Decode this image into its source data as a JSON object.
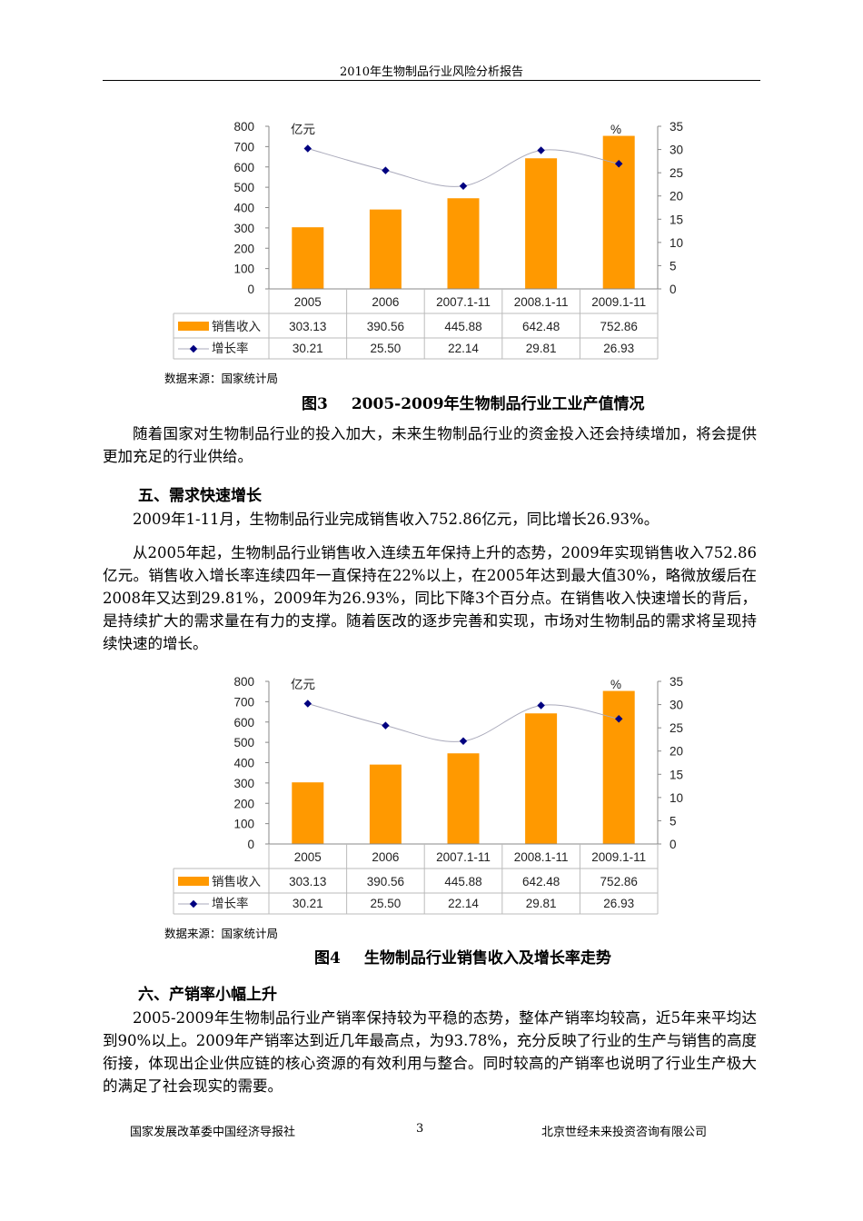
{
  "header": {
    "title": "2010年生物制品行业风险分析报告"
  },
  "body": {
    "p1": "随着国家对生物制品行业的投入加大，未来生物制品行业的资金投入还会持续增加，将会提供更加充足的行业供给。",
    "h5": "五、需求快速增长",
    "p2": "2009年1-11月，生物制品行业完成销售收入752.86亿元，同比增长26.93%。",
    "p3": "从2005年起，生物制品行业销售收入连续五年保持上升的态势，2009年实现销售收入752.86亿元。销售收入增长率连续四年一直保持在22%以上，在2005年达到最大值30%，略微放缓后在2008年又达到29.81%，2009年为26.93%，同比下降3个百分点。在销售收入快速增长的背后，是持续扩大的需求量在有力的支撑。随着医改的逐步完善和实现，市场对生物制品的需求将呈现持续快速的增长。",
    "h6": "六、产销率小幅上升",
    "p4": "2005-2009年生物制品行业产销率保持较为平稳的态势，整体产销率均较高，近5年来平均达到90%以上。2009年产销率达到近几年最高点，为93.78%，充分反映了行业的生产与销售的高度衔接，体现出企业供应链的核心资源的有效利用与整合。同时较高的产销率也说明了行业生产极大的满足了社会现实的需要。"
  },
  "figures": [
    {
      "source": "数据来源：国家统计局",
      "caption_num": "图3",
      "caption_text": "2005-2009年生物制品行业工业产值情况"
    },
    {
      "source": "数据来源：国家统计局",
      "caption_num": "图4",
      "caption_text": "生物制品行业销售收入及增长率走势"
    }
  ],
  "chart_data": [
    {
      "type": "bar+line",
      "categories": [
        "2005",
        "2006",
        "2007.1-11",
        "2008.1-11",
        "2009.1-11"
      ],
      "left_unit": "亿元",
      "right_unit": "%",
      "ylim": [
        0,
        800
      ],
      "y2lim": [
        0,
        35
      ],
      "yticks": [
        "0",
        "100",
        "200",
        "300",
        "400",
        "500",
        "600",
        "700",
        "800"
      ],
      "y2ticks": [
        "0",
        "5",
        "10",
        "15",
        "20",
        "25",
        "30",
        "35"
      ],
      "series": [
        {
          "name": "销售收入",
          "type": "bar",
          "values": [
            303.13,
            390.56,
            445.88,
            642.48,
            752.86
          ],
          "color": "#FF9900"
        },
        {
          "name": "增长率",
          "type": "line",
          "axis": "right",
          "values": [
            30.21,
            25.5,
            22.14,
            29.81,
            26.93
          ],
          "color": "#000080"
        }
      ],
      "data_table": true
    },
    {
      "type": "bar+line",
      "categories": [
        "2005",
        "2006",
        "2007.1-11",
        "2008.1-11",
        "2009.1-11"
      ],
      "left_unit": "亿元",
      "right_unit": "%",
      "ylim": [
        0,
        800
      ],
      "y2lim": [
        0,
        35
      ],
      "yticks": [
        "0",
        "100",
        "200",
        "300",
        "400",
        "500",
        "600",
        "700",
        "800"
      ],
      "y2ticks": [
        "0",
        "5",
        "10",
        "15",
        "20",
        "25",
        "30",
        "35"
      ],
      "series": [
        {
          "name": "销售收入",
          "type": "bar",
          "values": [
            303.13,
            390.56,
            445.88,
            642.48,
            752.86
          ],
          "color": "#FF9900"
        },
        {
          "name": "增长率",
          "type": "line",
          "axis": "right",
          "values": [
            30.21,
            25.5,
            22.14,
            29.81,
            26.93
          ],
          "color": "#000080"
        }
      ],
      "data_table": true
    }
  ],
  "footer": {
    "left": "国家发展改革委中国经济导报社",
    "page": "3",
    "right": "北京世经未来投资咨询有限公司"
  }
}
